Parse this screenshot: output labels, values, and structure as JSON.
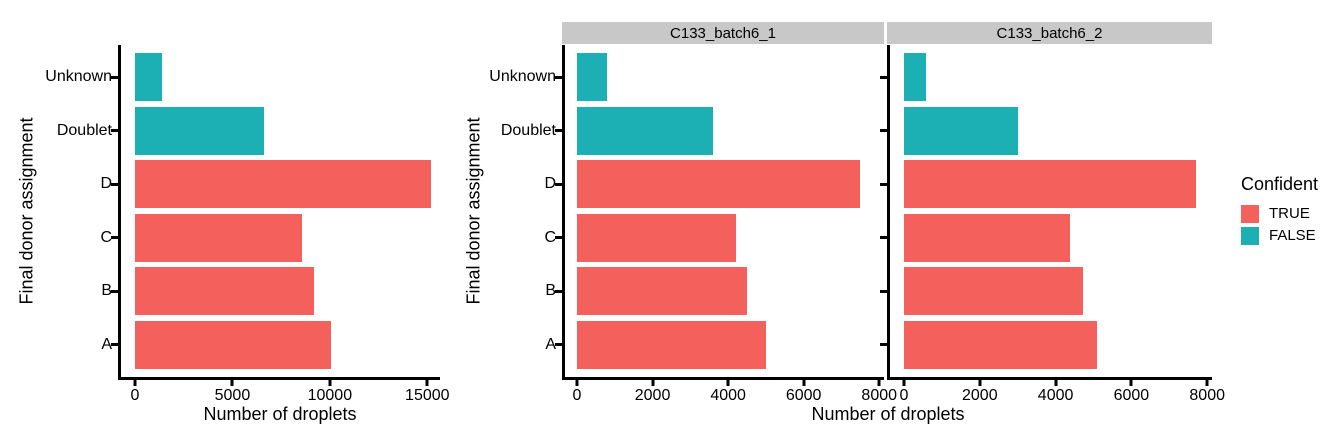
{
  "legend": {
    "title": "Confident",
    "items": [
      {
        "label": "TRUE",
        "color": "#F4605C"
      },
      {
        "label": "FALSE",
        "color": "#1CB0B4"
      }
    ],
    "position": "right"
  },
  "colors": {
    "confident_true": "#F4605C",
    "confident_false": "#1CB0B4",
    "facet_strip_bg": "#C8C8C8",
    "axis": "#000000"
  },
  "chart_data": [
    {
      "type": "bar",
      "orientation": "horizontal",
      "title": "",
      "categories": [
        "Unknown",
        "Doublet",
        "D",
        "C",
        "B",
        "A"
      ],
      "values": [
        1380,
        6600,
        15200,
        8550,
        9200,
        10080
      ],
      "confident": [
        false,
        false,
        true,
        true,
        true,
        true
      ],
      "xlabel": "Number of droplets",
      "ylabel": "Final donor assignment",
      "xticks": [
        0,
        5000,
        10000,
        15000
      ],
      "xlim": [
        0,
        15600
      ],
      "grid": false,
      "legend_position": "none"
    },
    {
      "type": "bar",
      "orientation": "horizontal",
      "title": "",
      "categories": [
        "Unknown",
        "Doublet",
        "D",
        "C",
        "B",
        "A"
      ],
      "confident": [
        false,
        false,
        true,
        true,
        true,
        true
      ],
      "facets": [
        {
          "title": "C133_batch6_1",
          "values": [
            800,
            3600,
            7500,
            4200,
            4500,
            5000
          ]
        },
        {
          "title": "C133_batch6_2",
          "values": [
            580,
            3000,
            7700,
            4380,
            4720,
            5090
          ]
        }
      ],
      "xlabel": "Number of droplets",
      "ylabel": "Final donor assignment",
      "xticks": [
        0,
        2000,
        4000,
        6000,
        8000
      ],
      "xlim": [
        0,
        8100
      ],
      "grid": false,
      "legend_position": "right",
      "legend_title": "Confident"
    }
  ]
}
